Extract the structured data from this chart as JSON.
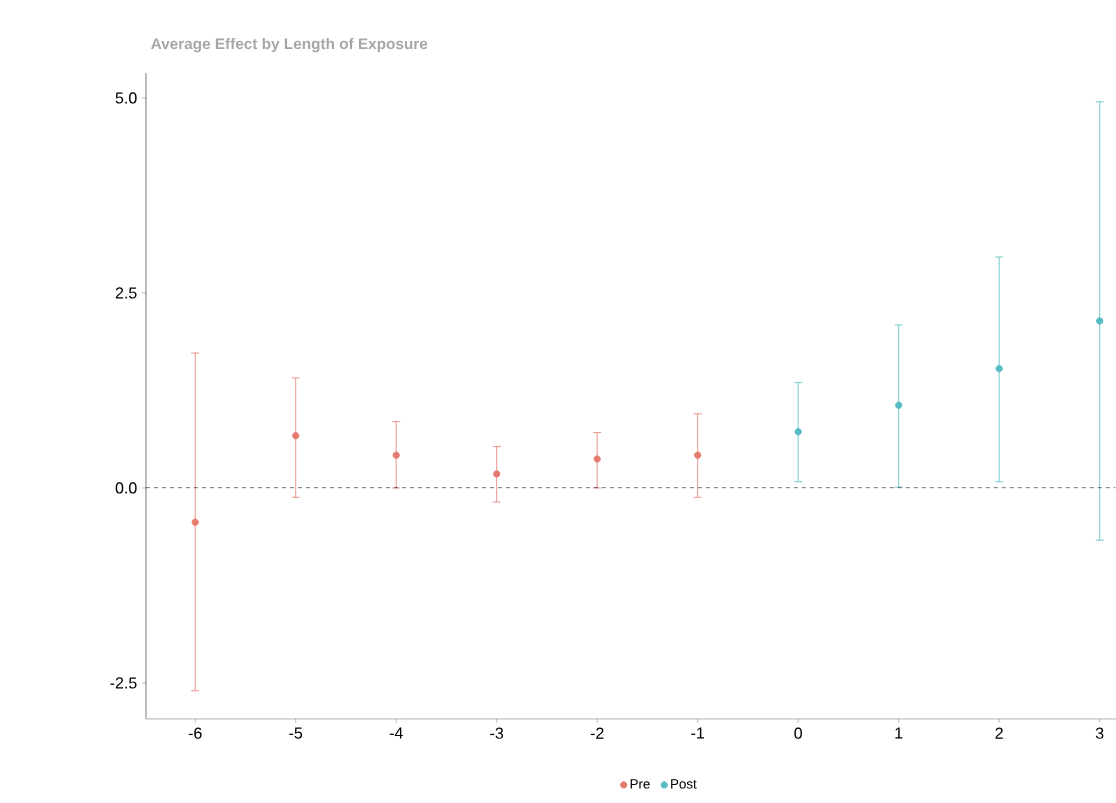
{
  "chart_data": {
    "type": "scatter",
    "title": "Average Effect by Length of Exposure",
    "xlim": [
      -6.49,
      3.16
    ],
    "ylim": [
      -2.96,
      5.32
    ],
    "xticks": [
      -6,
      -5,
      -4,
      -3,
      -2,
      -1,
      0,
      1,
      2,
      3
    ],
    "yticks": [
      {
        "value": -2.5,
        "label": "-2.5"
      },
      {
        "value": 0,
        "label": "0.0"
      },
      {
        "value": 2.5,
        "label": "2.5"
      },
      {
        "value": 5,
        "label": "5.0"
      }
    ],
    "series": [
      {
        "name": "Pre",
        "color": "#e57a6e",
        "x": [
          -6,
          -5,
          -4,
          -3,
          -2,
          -1
        ],
        "values": [
          -0.44,
          0.67,
          0.42,
          0.18,
          0.37,
          0.42
        ],
        "errors": [
          [
            -2.6,
            1.73
          ],
          [
            -0.12,
            1.41
          ],
          [
            0.0,
            0.85
          ],
          [
            -0.18,
            0.53
          ],
          [
            0.0,
            0.71
          ],
          [
            -0.12,
            0.95
          ]
        ]
      },
      {
        "name": "Post",
        "color": "#56bcc4",
        "x": [
          0,
          1,
          2,
          3
        ],
        "values": [
          0.72,
          1.06,
          1.53,
          2.14
        ],
        "errors": [
          [
            0.08,
            1.35
          ],
          [
            0.01,
            2.09
          ],
          [
            0.08,
            2.96
          ],
          [
            -0.67,
            4.95
          ]
        ]
      }
    ],
    "ref_lines": [
      {
        "axis": "y",
        "value": 0,
        "color": "#000000",
        "line_style": "dashed"
      }
    ],
    "legend": "bottom",
    "grid": false
  }
}
